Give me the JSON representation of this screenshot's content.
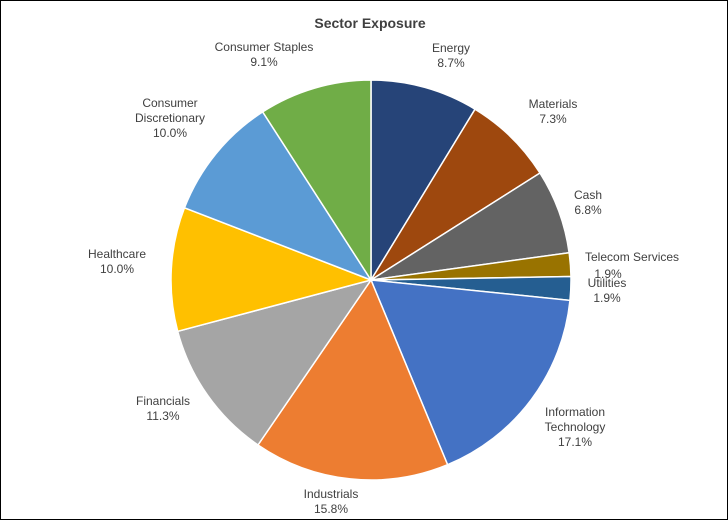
{
  "chart_data": {
    "type": "pie",
    "title": "Sector Exposure",
    "slices": [
      {
        "label": "Energy",
        "value": 8.7,
        "display": "8.7%",
        "color": "#264478"
      },
      {
        "label": "Materials",
        "value": 7.3,
        "display": "7.3%",
        "color": "#9E480E"
      },
      {
        "label": "Cash",
        "value": 6.8,
        "display": "6.8%",
        "color": "#636363"
      },
      {
        "label": "Telecom Services",
        "value": 1.9,
        "display": "1.9%",
        "color": "#997300"
      },
      {
        "label": "Utilities",
        "value": 1.9,
        "display": "1.9%",
        "color": "#255E91"
      },
      {
        "label": "Information Technology",
        "value": 17.1,
        "display": "17.1%",
        "color": "#4472C4"
      },
      {
        "label": "Industrials",
        "value": 15.8,
        "display": "15.8%",
        "color": "#ED7D31"
      },
      {
        "label": "Financials",
        "value": 11.3,
        "display": "11.3%",
        "color": "#A5A5A5"
      },
      {
        "label": "Healthcare",
        "value": 10.0,
        "display": "10.0%",
        "color": "#FFC000"
      },
      {
        "label": "Consumer Discretionary",
        "value": 10.0,
        "display": "10.0%",
        "color": "#5B9BD5"
      },
      {
        "label": "Consumer Staples",
        "value": 9.1,
        "display": "9.1%",
        "color": "#70AD47"
      }
    ]
  }
}
